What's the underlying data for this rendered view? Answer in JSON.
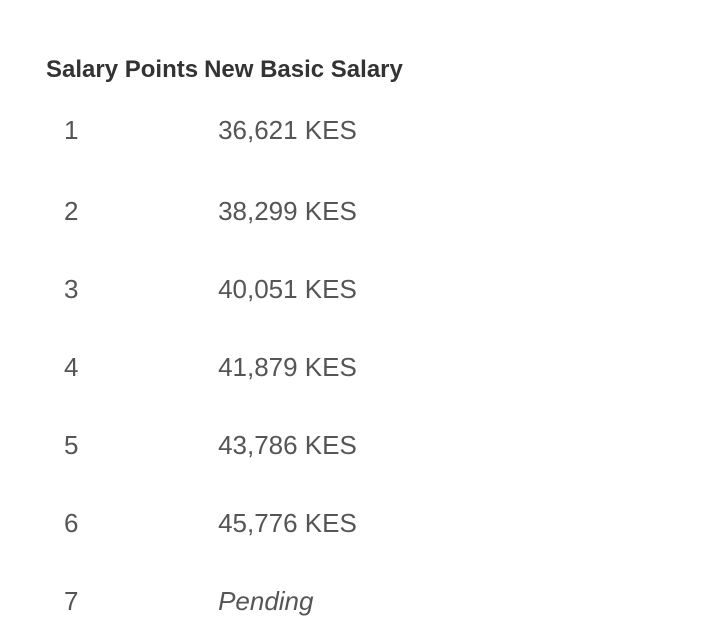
{
  "table": {
    "headers": [
      "Salary Points",
      "New Basic Salary"
    ],
    "rows": [
      {
        "point": "1",
        "salary": "36,621 KES"
      },
      {
        "point": "2",
        "salary": "38,299 KES"
      },
      {
        "point": "3",
        "salary": "40,051 KES"
      },
      {
        "point": "4",
        "salary": "41,879 KES"
      },
      {
        "point": "5",
        "salary": "43,786 KES"
      },
      {
        "point": "6",
        "salary": "45,776 KES"
      },
      {
        "point": "7",
        "salary": "Pending"
      }
    ]
  }
}
